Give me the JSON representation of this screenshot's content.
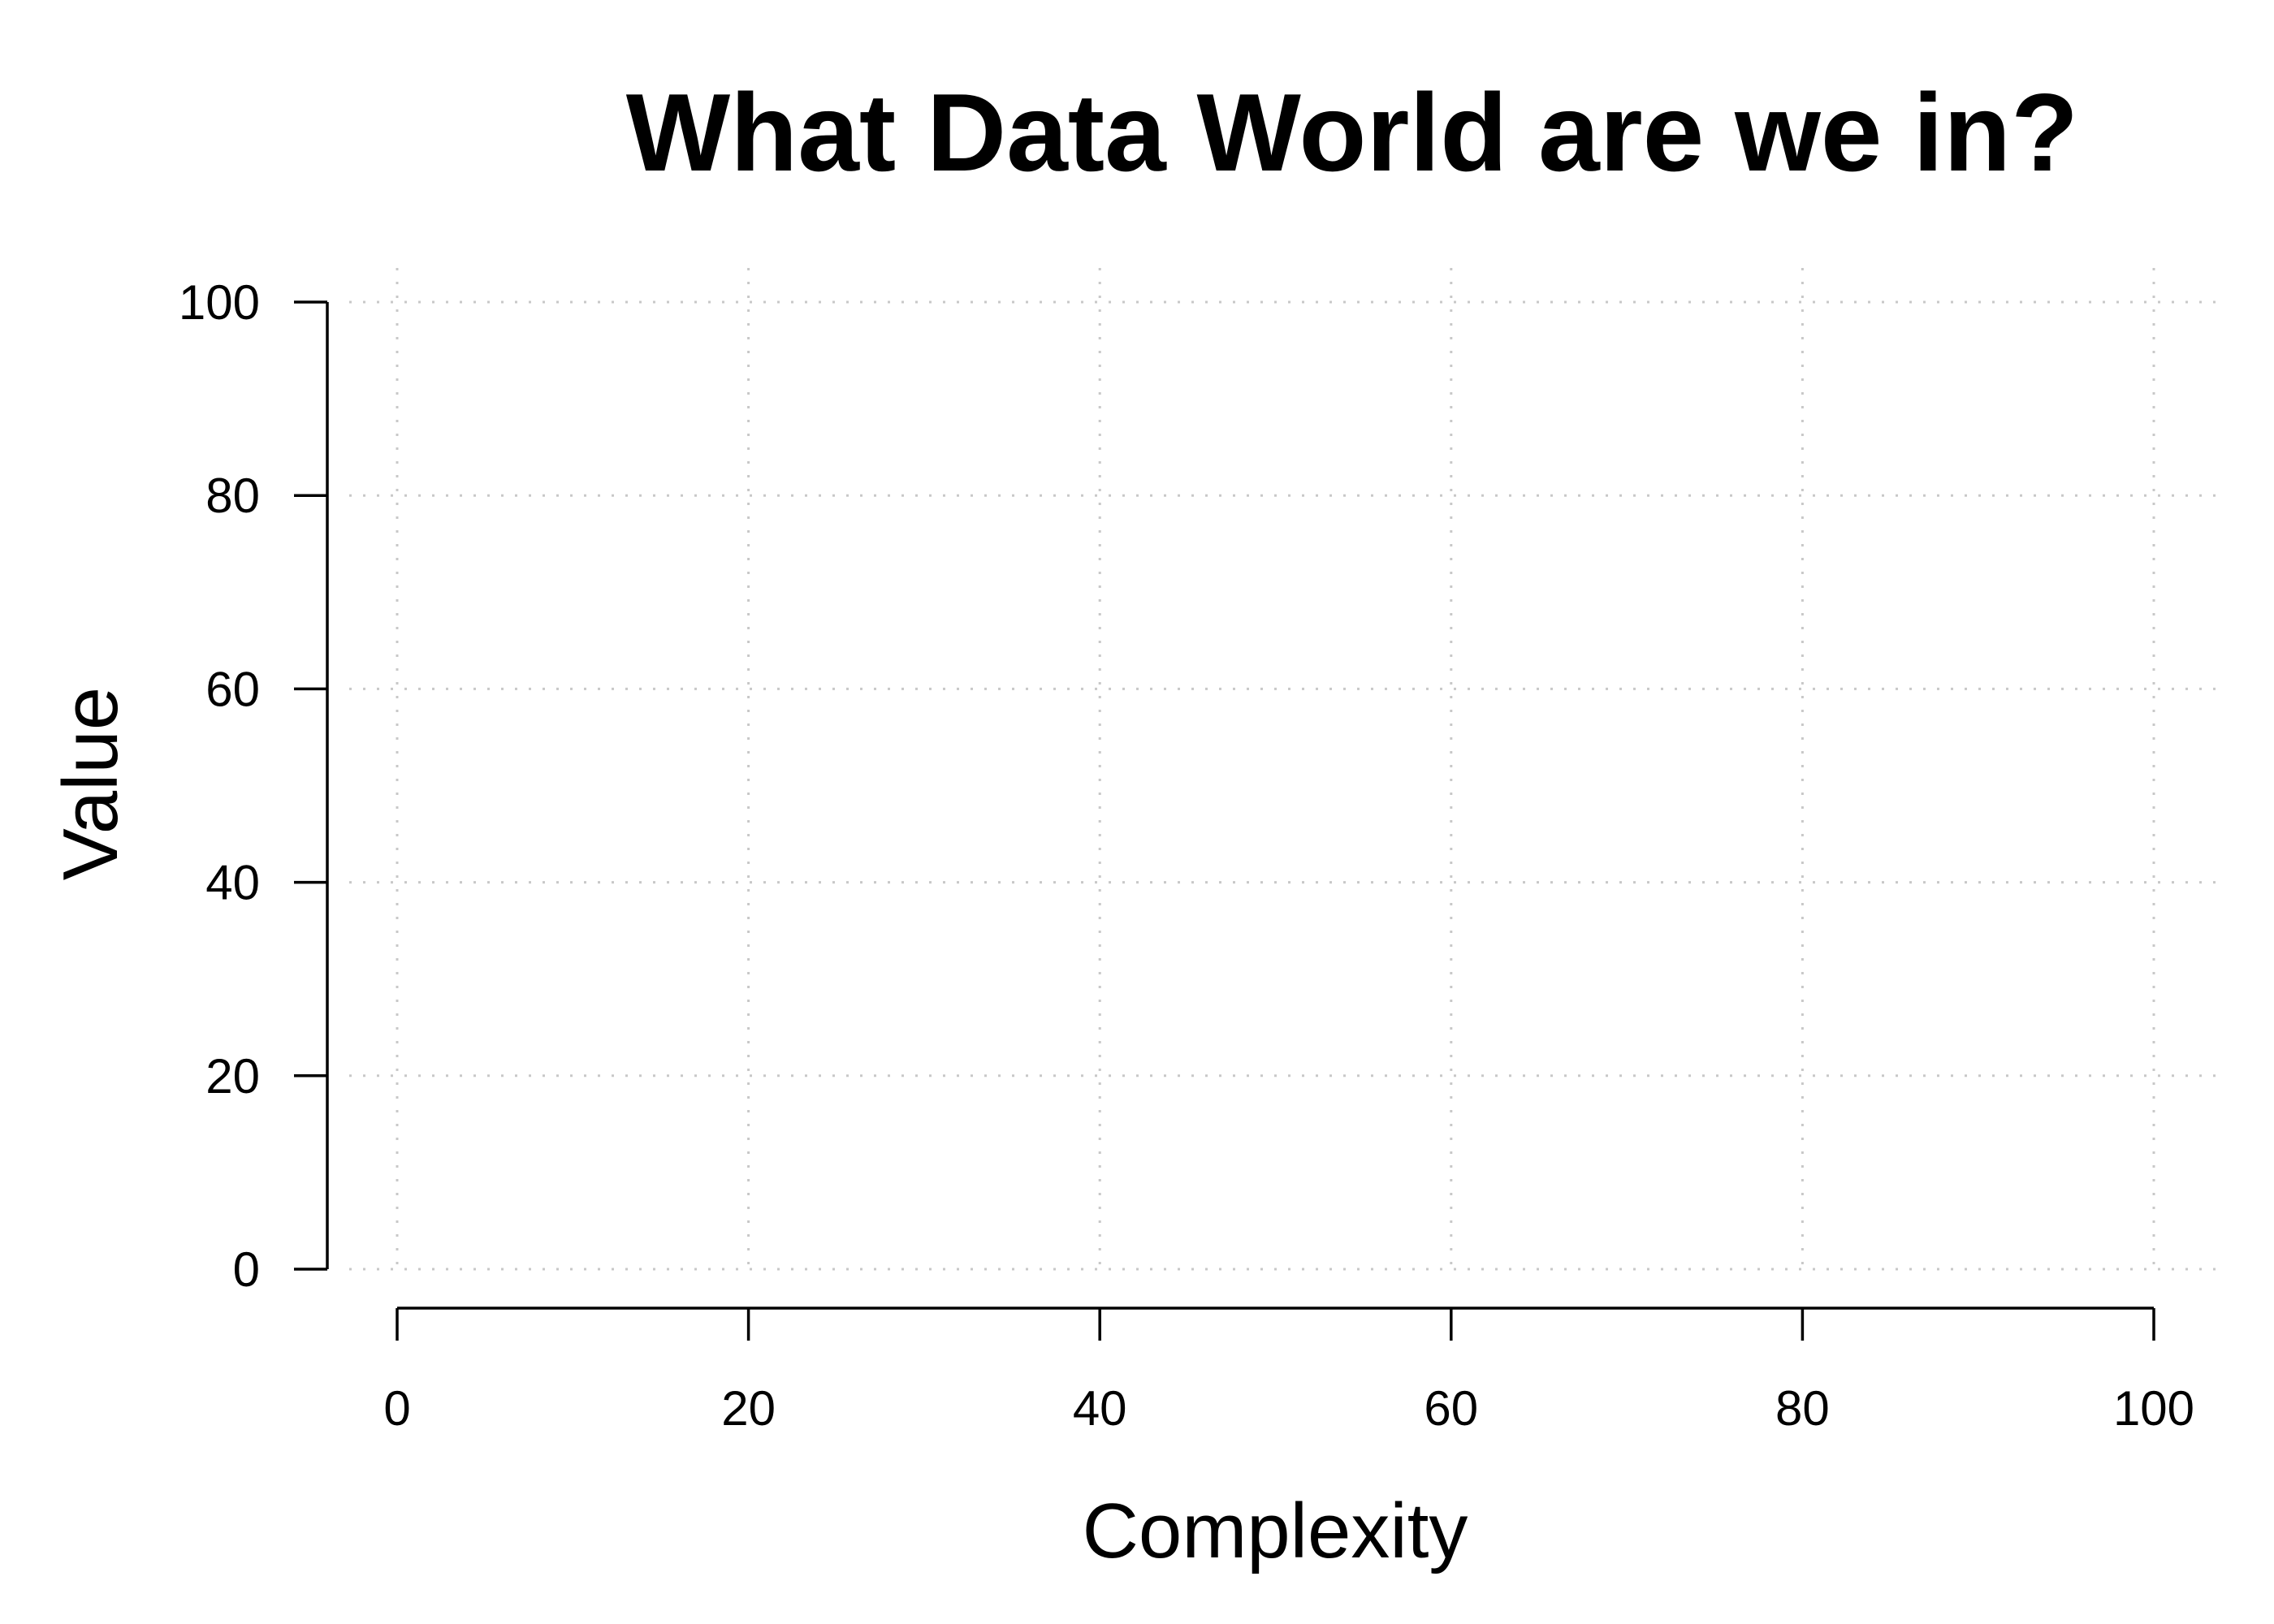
{
  "chart_data": {
    "type": "scatter",
    "title": "What Data World are we in?",
    "xlabel": "Complexity",
    "ylabel": "Value",
    "xlim": [
      0,
      100
    ],
    "ylim": [
      0,
      100
    ],
    "x_ticks": [
      0,
      20,
      40,
      60,
      80,
      100
    ],
    "y_ticks": [
      0,
      20,
      40,
      60,
      80,
      100
    ],
    "grid": true,
    "series": [
      {
        "x": [],
        "y": []
      }
    ]
  }
}
